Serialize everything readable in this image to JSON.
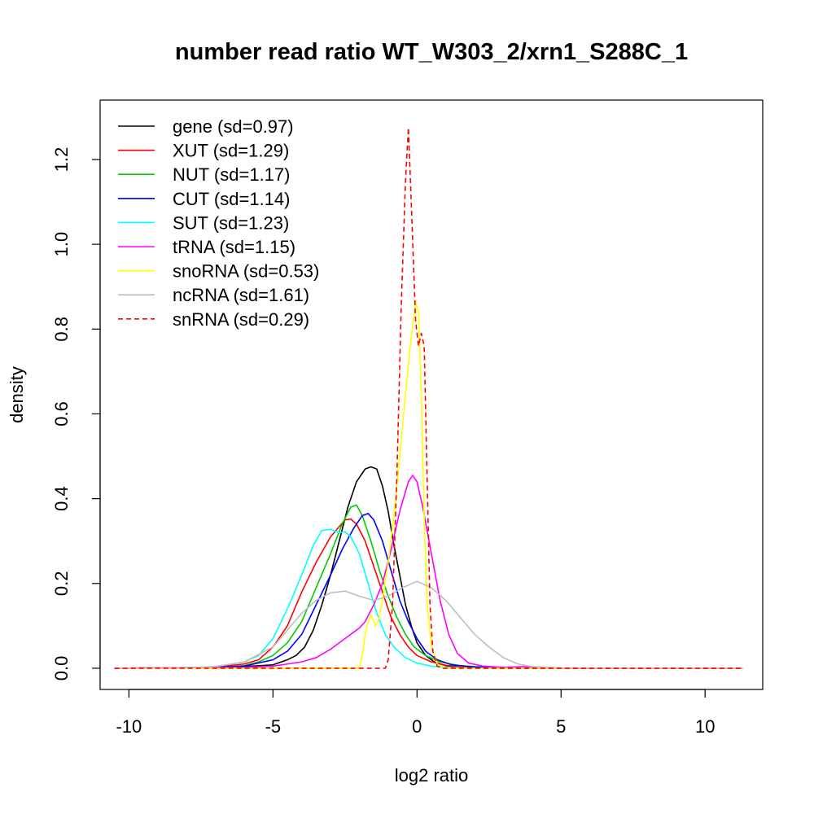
{
  "chart_data": {
    "type": "line",
    "title": "number read ratio WT_W303_2/xrn1_S288C_1",
    "xlabel": "log2 ratio",
    "ylabel": "density",
    "xlim": [
      -11.0,
      12.0
    ],
    "ylim": [
      -0.05,
      1.34
    ],
    "x_ticks": [
      -10,
      -5,
      0,
      5,
      10
    ],
    "x_tick_labels": [
      "-10",
      "-5",
      "0",
      "5",
      "10"
    ],
    "y_ticks": [
      0.0,
      0.2,
      0.4,
      0.6,
      0.8,
      1.0,
      1.2
    ],
    "y_tick_labels": [
      "0.0",
      "0.2",
      "0.4",
      "0.6",
      "0.8",
      "1.0",
      "1.2"
    ],
    "grid": false,
    "legend_position": "top-left",
    "series": [
      {
        "name": "gene (sd=0.97)",
        "color": "#000000",
        "dash": "solid",
        "points": [
          [
            -10.5,
            0
          ],
          [
            -7,
            0.002
          ],
          [
            -6,
            0.004
          ],
          [
            -5,
            0.008
          ],
          [
            -4.5,
            0.02
          ],
          [
            -4.2,
            0.03
          ],
          [
            -3.9,
            0.05
          ],
          [
            -3.6,
            0.09
          ],
          [
            -3.3,
            0.15
          ],
          [
            -3.0,
            0.22
          ],
          [
            -2.7,
            0.3
          ],
          [
            -2.4,
            0.38
          ],
          [
            -2.1,
            0.44
          ],
          [
            -1.8,
            0.47
          ],
          [
            -1.6,
            0.475
          ],
          [
            -1.4,
            0.47
          ],
          [
            -1.2,
            0.43
          ],
          [
            -1.0,
            0.37
          ],
          [
            -0.8,
            0.29
          ],
          [
            -0.6,
            0.22
          ],
          [
            -0.4,
            0.15
          ],
          [
            -0.2,
            0.1
          ],
          [
            0,
            0.06
          ],
          [
            0.3,
            0.03
          ],
          [
            0.6,
            0.015
          ],
          [
            1,
            0.006
          ],
          [
            1.5,
            0.002
          ],
          [
            3,
            0
          ],
          [
            11.3,
            0
          ]
        ]
      },
      {
        "name": "XUT (sd=1.29)",
        "color": "#ff0000",
        "dash": "solid",
        "points": [
          [
            -10.5,
            0
          ],
          [
            -8,
            0.001
          ],
          [
            -7,
            0.003
          ],
          [
            -6,
            0.01
          ],
          [
            -5.5,
            0.02
          ],
          [
            -5,
            0.05
          ],
          [
            -4.5,
            0.1
          ],
          [
            -4,
            0.18
          ],
          [
            -3.5,
            0.25
          ],
          [
            -3,
            0.31
          ],
          [
            -2.5,
            0.35
          ],
          [
            -2.3,
            0.352
          ],
          [
            -2.1,
            0.34
          ],
          [
            -1.8,
            0.3
          ],
          [
            -1.5,
            0.24
          ],
          [
            -1.2,
            0.18
          ],
          [
            -0.9,
            0.12
          ],
          [
            -0.6,
            0.08
          ],
          [
            -0.3,
            0.05
          ],
          [
            0,
            0.03
          ],
          [
            0.5,
            0.015
          ],
          [
            1,
            0.007
          ],
          [
            1.5,
            0.003
          ],
          [
            2.5,
            0.001
          ],
          [
            4,
            0
          ],
          [
            11.3,
            0
          ]
        ]
      },
      {
        "name": "NUT (sd=1.17)",
        "color": "#00cc00",
        "dash": "solid",
        "points": [
          [
            -10.5,
            0
          ],
          [
            -7,
            0.002
          ],
          [
            -6,
            0.006
          ],
          [
            -5.5,
            0.015
          ],
          [
            -5,
            0.03
          ],
          [
            -4.5,
            0.06
          ],
          [
            -4,
            0.11
          ],
          [
            -3.5,
            0.19
          ],
          [
            -3,
            0.27
          ],
          [
            -2.6,
            0.34
          ],
          [
            -2.3,
            0.38
          ],
          [
            -2.1,
            0.385
          ],
          [
            -1.9,
            0.36
          ],
          [
            -1.6,
            0.3
          ],
          [
            -1.3,
            0.23
          ],
          [
            -1.0,
            0.17
          ],
          [
            -0.7,
            0.12
          ],
          [
            -0.4,
            0.08
          ],
          [
            -0.1,
            0.05
          ],
          [
            0.3,
            0.03
          ],
          [
            0.8,
            0.015
          ],
          [
            1.5,
            0.006
          ],
          [
            2.5,
            0.002
          ],
          [
            4,
            0
          ],
          [
            11.3,
            0
          ]
        ]
      },
      {
        "name": "CUT (sd=1.14)",
        "color": "#0000ff",
        "dash": "solid",
        "points": [
          [
            -10.5,
            0
          ],
          [
            -7,
            0.002
          ],
          [
            -6,
            0.005
          ],
          [
            -5,
            0.02
          ],
          [
            -4.5,
            0.04
          ],
          [
            -4,
            0.08
          ],
          [
            -3.5,
            0.15
          ],
          [
            -3,
            0.22
          ],
          [
            -2.6,
            0.28
          ],
          [
            -2.2,
            0.33
          ],
          [
            -1.9,
            0.36
          ],
          [
            -1.7,
            0.365
          ],
          [
            -1.5,
            0.35
          ],
          [
            -1.2,
            0.3
          ],
          [
            -0.9,
            0.23
          ],
          [
            -0.6,
            0.16
          ],
          [
            -0.3,
            0.11
          ],
          [
            0,
            0.07
          ],
          [
            0.3,
            0.04
          ],
          [
            0.7,
            0.02
          ],
          [
            1.2,
            0.008
          ],
          [
            2,
            0.003
          ],
          [
            3,
            0.001
          ],
          [
            4,
            0
          ],
          [
            11.3,
            0
          ]
        ]
      },
      {
        "name": "SUT (sd=1.23)",
        "color": "#00ffff",
        "dash": "solid",
        "points": [
          [
            -10.5,
            0
          ],
          [
            -8,
            0.001
          ],
          [
            -7,
            0.004
          ],
          [
            -6,
            0.015
          ],
          [
            -5.5,
            0.03
          ],
          [
            -5,
            0.07
          ],
          [
            -4.5,
            0.14
          ],
          [
            -4,
            0.22
          ],
          [
            -3.6,
            0.29
          ],
          [
            -3.3,
            0.325
          ],
          [
            -3.0,
            0.328
          ],
          [
            -2.7,
            0.32
          ],
          [
            -2.5,
            0.322
          ],
          [
            -2.3,
            0.31
          ],
          [
            -2.0,
            0.27
          ],
          [
            -1.7,
            0.2
          ],
          [
            -1.4,
            0.13
          ],
          [
            -1.1,
            0.08
          ],
          [
            -0.8,
            0.05
          ],
          [
            -0.4,
            0.025
          ],
          [
            0,
            0.012
          ],
          [
            0.5,
            0.005
          ],
          [
            1,
            0.002
          ],
          [
            2,
            0
          ],
          [
            11.3,
            0
          ]
        ]
      },
      {
        "name": "tRNA (sd=1.15)",
        "color": "#ff00ff",
        "dash": "solid",
        "points": [
          [
            -10.5,
            0
          ],
          [
            -6,
            0.002
          ],
          [
            -5,
            0.005
          ],
          [
            -4.5,
            0.01
          ],
          [
            -4,
            0.015
          ],
          [
            -3.5,
            0.025
          ],
          [
            -3.0,
            0.045
          ],
          [
            -2.5,
            0.07
          ],
          [
            -2.2,
            0.085
          ],
          [
            -2,
            0.095
          ],
          [
            -1.8,
            0.11
          ],
          [
            -1.5,
            0.15
          ],
          [
            -1.2,
            0.2
          ],
          [
            -0.9,
            0.28
          ],
          [
            -0.6,
            0.37
          ],
          [
            -0.3,
            0.44
          ],
          [
            -0.15,
            0.455
          ],
          [
            0,
            0.44
          ],
          [
            0.2,
            0.38
          ],
          [
            0.5,
            0.27
          ],
          [
            0.8,
            0.16
          ],
          [
            1.1,
            0.08
          ],
          [
            1.4,
            0.035
          ],
          [
            1.8,
            0.012
          ],
          [
            2.3,
            0.005
          ],
          [
            3,
            0.002
          ],
          [
            3.7,
            0.004
          ],
          [
            4.2,
            0.001
          ],
          [
            5,
            0
          ],
          [
            11.3,
            0
          ]
        ]
      },
      {
        "name": "snoRNA (sd=0.53)",
        "color": "#ffff00",
        "dash": "solid",
        "points": [
          [
            -10.5,
            0
          ],
          [
            -2.2,
            0
          ],
          [
            -2,
            0.002
          ],
          [
            -1.9,
            0.03
          ],
          [
            -1.8,
            0.08
          ],
          [
            -1.7,
            0.11
          ],
          [
            -1.6,
            0.125
          ],
          [
            -1.5,
            0.11
          ],
          [
            -1.45,
            0.1
          ],
          [
            -1.35,
            0.11
          ],
          [
            -1.2,
            0.16
          ],
          [
            -1.0,
            0.25
          ],
          [
            -0.8,
            0.36
          ],
          [
            -0.6,
            0.5
          ],
          [
            -0.4,
            0.65
          ],
          [
            -0.2,
            0.78
          ],
          [
            -0.05,
            0.865
          ],
          [
            0.05,
            0.84
          ],
          [
            0.15,
            0.65
          ],
          [
            0.25,
            0.35
          ],
          [
            0.35,
            0.15
          ],
          [
            0.5,
            0.05
          ],
          [
            0.7,
            0.01
          ],
          [
            1,
            0
          ],
          [
            11.3,
            0
          ]
        ]
      },
      {
        "name": "ncRNA (sd=1.61)",
        "color": "#bebebe",
        "dash": "solid",
        "points": [
          [
            -10.5,
            0
          ],
          [
            -8,
            0.001
          ],
          [
            -7,
            0.004
          ],
          [
            -6,
            0.015
          ],
          [
            -5,
            0.05
          ],
          [
            -4.5,
            0.09
          ],
          [
            -4,
            0.13
          ],
          [
            -3.5,
            0.16
          ],
          [
            -3,
            0.178
          ],
          [
            -2.5,
            0.182
          ],
          [
            -2,
            0.17
          ],
          [
            -1.5,
            0.16
          ],
          [
            -1,
            0.17
          ],
          [
            -0.5,
            0.19
          ],
          [
            0,
            0.205
          ],
          [
            0.5,
            0.19
          ],
          [
            1,
            0.16
          ],
          [
            1.5,
            0.12
          ],
          [
            2,
            0.08
          ],
          [
            2.5,
            0.05
          ],
          [
            3,
            0.025
          ],
          [
            3.5,
            0.01
          ],
          [
            4,
            0.004
          ],
          [
            5,
            0.001
          ],
          [
            6,
            0
          ],
          [
            11.3,
            0
          ]
        ]
      },
      {
        "name": "snRNA (sd=0.29)",
        "color": "#ff0000",
        "dash": "dashed",
        "points": [
          [
            -10.5,
            0
          ],
          [
            -1.1,
            0
          ],
          [
            -1.0,
            0.02
          ],
          [
            -0.85,
            0.15
          ],
          [
            -0.7,
            0.45
          ],
          [
            -0.55,
            0.85
          ],
          [
            -0.4,
            1.15
          ],
          [
            -0.3,
            1.275
          ],
          [
            -0.2,
            1.1
          ],
          [
            -0.05,
            0.82
          ],
          [
            0.05,
            0.76
          ],
          [
            0.15,
            0.79
          ],
          [
            0.25,
            0.76
          ],
          [
            0.35,
            0.45
          ],
          [
            0.45,
            0.15
          ],
          [
            0.55,
            0.04
          ],
          [
            0.7,
            0.005
          ],
          [
            0.9,
            0
          ],
          [
            11.3,
            0
          ]
        ]
      }
    ]
  }
}
